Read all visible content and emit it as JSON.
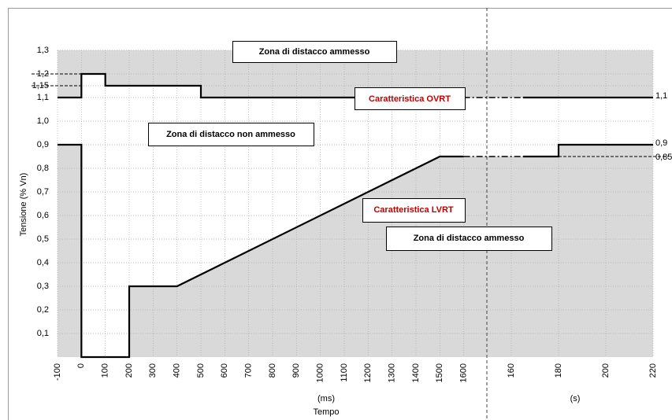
{
  "chart_data": {
    "type": "line",
    "ylabel": "Tensione (% Vn)",
    "xlabel": "Tempo",
    "ylim": [
      0,
      1.3
    ],
    "yticks": [
      {
        "value": 0.1,
        "label": "0,1"
      },
      {
        "value": 0.2,
        "label": "0,2"
      },
      {
        "value": 0.3,
        "label": "0,3"
      },
      {
        "value": 0.4,
        "label": "0,4"
      },
      {
        "value": 0.5,
        "label": "0,5"
      },
      {
        "value": 0.6,
        "label": "0,6"
      },
      {
        "value": 0.7,
        "label": "0,7"
      },
      {
        "value": 0.8,
        "label": "0,8"
      },
      {
        "value": 0.9,
        "label": "0,9"
      },
      {
        "value": 1.0,
        "label": "1,0"
      },
      {
        "value": 1.1,
        "label": "1,1"
      },
      {
        "value": 1.15,
        "label": "1,15"
      },
      {
        "value": 1.2,
        "label": "1,2"
      },
      {
        "value": 1.3,
        "label": "1,3"
      }
    ],
    "x_segments": [
      {
        "unit": "(ms)",
        "xlim": [
          -100,
          1700
        ],
        "xticks": [
          -100,
          0,
          100,
          200,
          300,
          400,
          500,
          600,
          700,
          800,
          900,
          1000,
          1100,
          1200,
          1300,
          1400,
          1500,
          1600
        ]
      },
      {
        "unit": "(s)",
        "xlim": [
          150,
          220
        ],
        "xticks": [
          160,
          180,
          200,
          220
        ]
      }
    ],
    "series": [
      {
        "name": "Caratteristica OVRT",
        "color": "#000000",
        "pieces": [
          {
            "segment": 0,
            "x": [
              -100,
              0,
              0,
              100,
              100,
              500,
              500,
              1600
            ],
            "values": [
              1.1,
              1.1,
              1.2,
              1.2,
              1.15,
              1.15,
              1.1,
              1.1
            ]
          },
          {
            "segment": 1,
            "x": [
              165,
              220
            ],
            "values": [
              1.1,
              1.1
            ]
          }
        ]
      },
      {
        "name": "Caratteristica LVRT",
        "color": "#000000",
        "pieces": [
          {
            "segment": 0,
            "x": [
              -100,
              0,
              0,
              200,
              200,
              400,
              1500,
              1600
            ],
            "values": [
              0.9,
              0.9,
              0,
              0,
              0.3,
              0.3,
              0.85,
              0.85
            ]
          },
          {
            "segment": 1,
            "x": [
              165,
              180,
              180,
              220
            ],
            "values": [
              0.85,
              0.85,
              0.9,
              0.9
            ]
          }
        ]
      }
    ],
    "right_labels": [
      {
        "value": 1.1,
        "label": "1,1"
      },
      {
        "value": 0.9,
        "label": "0,9"
      },
      {
        "value": 0.85,
        "label": "0,85"
      }
    ],
    "zones": [
      "Zona di distacco ammesso",
      "Zona di distacco non ammesso",
      "Zona di distacco ammesso"
    ],
    "fill_color": "#d9d9d9",
    "grid": true
  }
}
